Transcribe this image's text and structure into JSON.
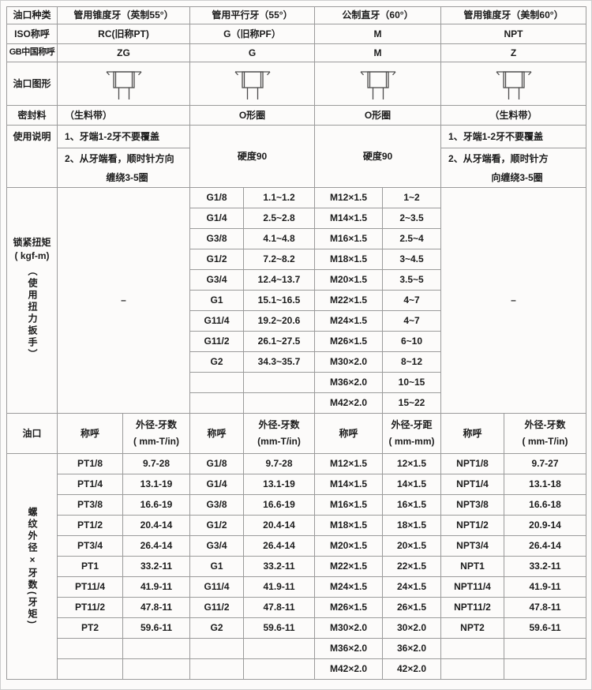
{
  "colors": {
    "border": "#9b9b9b",
    "frame": "#cdcdcd",
    "background": "#fcfbfa",
    "text": "#1c1c1c",
    "icon_stroke": "#4c4c4c"
  },
  "header": {
    "row1": {
      "label": "油口种类",
      "c1": "管用锥度牙（英制55°）",
      "c2": "管用平行牙（55°）",
      "c3": "公制直牙（60°）",
      "c4": "管用锥度牙（美制60°）"
    },
    "row2": {
      "label": "ISO称呼",
      "c1": "RC(旧称PT)",
      "c2": "G（旧称PF）",
      "c3": "M",
      "c4": "NPT"
    },
    "row3": {
      "label": "GB中国称呼",
      "c1": "ZG",
      "c2": "G",
      "c3": "M",
      "c4": "Z"
    }
  },
  "graphic_row": {
    "label": "油口图形",
    "icon": "port-cross-section-icon"
  },
  "seal_row": {
    "label": "密封料",
    "c1": "（生料带）",
    "c2": "O形圈",
    "c3": "O形圈",
    "c4": "（生料带）"
  },
  "usage": {
    "label": "使用说明",
    "c1_line1": "1、牙端1-2牙不要覆盖",
    "c1_line2": "2、从牙端看，顺时针方向",
    "c1_line3": "缠绕3-5圈",
    "c2": "硬度90",
    "c3": "硬度90",
    "c4_line1": "1、牙端1-2牙不要覆盖",
    "c4_line2": "2、从牙端看，顺时针方",
    "c4_line3": "向缠绕3-5圈"
  },
  "torque": {
    "label_line1": "锁紧扭矩",
    "label_line2": "( kgf-m)",
    "label_vertical": "（使用扭力扳手）",
    "rc_value": "–",
    "npt_value": "–",
    "rows": [
      {
        "g": "G1/8",
        "gv": "1.1~1.2",
        "m": "M12×1.5",
        "mv": "1~2"
      },
      {
        "g": "G1/4",
        "gv": "2.5~2.8",
        "m": "M14×1.5",
        "mv": "2~3.5"
      },
      {
        "g": "G3/8",
        "gv": "4.1~4.8",
        "m": "M16×1.5",
        "mv": "2.5~4"
      },
      {
        "g": "G1/2",
        "gv": "7.2~8.2",
        "m": "M18×1.5",
        "mv": "3~4.5"
      },
      {
        "g": "G3/4",
        "gv": "12.4~13.7",
        "m": "M20×1.5",
        "mv": "3.5~5"
      },
      {
        "g": "G1",
        "gv": "15.1~16.5",
        "m": "M22×1.5",
        "mv": "4~7"
      },
      {
        "g": "G11/4",
        "gv": "19.2~20.6",
        "m": "M24×1.5",
        "mv": "4~7"
      },
      {
        "g": "G11/2",
        "gv": "26.1~27.5",
        "m": "M26×1.5",
        "mv": "6~10"
      },
      {
        "g": "G2",
        "gv": "34.3~35.7",
        "m": "M30×2.0",
        "mv": "8~12"
      },
      {
        "g": "",
        "gv": "",
        "m": "M36×2.0",
        "mv": "10~15"
      },
      {
        "g": "",
        "gv": "",
        "m": "M42×2.0",
        "mv": "15~22"
      }
    ]
  },
  "port_header": {
    "label": "油口",
    "pt_name": "称呼",
    "pt_spec": "外径-牙数",
    "pt_unit": "( mm-T/in)",
    "g_name": "称呼",
    "g_spec": "外径-牙数",
    "g_unit": "(mm-T/in)",
    "m_name": "称呼",
    "m_spec": "外径-牙距",
    "m_unit": "( mm-mm)",
    "npt_name": "称呼",
    "npt_spec": "外径-牙数",
    "npt_unit": "( mm-T/in)"
  },
  "spec": {
    "label_vertical": "螺纹外径×牙数(牙矩)",
    "rows": [
      {
        "c": [
          "PT1/8",
          "9.7-28",
          "G1/8",
          "9.7-28",
          "M12×1.5",
          "12×1.5",
          "NPT1/8",
          "9.7-27"
        ]
      },
      {
        "c": [
          "PT1/4",
          "13.1-19",
          "G1/4",
          "13.1-19",
          "M14×1.5",
          "14×1.5",
          "NPT1/4",
          "13.1-18"
        ]
      },
      {
        "c": [
          "PT3/8",
          "16.6-19",
          "G3/8",
          "16.6-19",
          "M16×1.5",
          "16×1.5",
          "NPT3/8",
          "16.6-18"
        ]
      },
      {
        "c": [
          "PT1/2",
          "20.4-14",
          "G1/2",
          "20.4-14",
          "M18×1.5",
          "18×1.5",
          "NPT1/2",
          "20.9-14"
        ]
      },
      {
        "c": [
          "PT3/4",
          "26.4-14",
          "G3/4",
          "26.4-14",
          "M20×1.5",
          "20×1.5",
          "NPT3/4",
          "26.4-14"
        ]
      },
      {
        "c": [
          "PT1",
          "33.2-11",
          "G1",
          "33.2-11",
          "M22×1.5",
          "22×1.5",
          "NPT1",
          "33.2-11"
        ]
      },
      {
        "c": [
          "PT11/4",
          "41.9-11",
          "G11/4",
          "41.9-11",
          "M24×1.5",
          "24×1.5",
          "NPT11/4",
          "41.9-11"
        ]
      },
      {
        "c": [
          "PT11/2",
          "47.8-11",
          "G11/2",
          "47.8-11",
          "M26×1.5",
          "26×1.5",
          "NPT11/2",
          "47.8-11"
        ]
      },
      {
        "c": [
          "PT2",
          "59.6-11",
          "G2",
          "59.6-11",
          "M30×2.0",
          "30×2.0",
          "NPT2",
          "59.6-11"
        ]
      },
      {
        "c": [
          "",
          "",
          "",
          "",
          "M36×2.0",
          "36×2.0",
          "",
          ""
        ]
      },
      {
        "c": [
          "",
          "",
          "",
          "",
          "M42×2.0",
          "42×2.0",
          "",
          ""
        ]
      }
    ]
  }
}
